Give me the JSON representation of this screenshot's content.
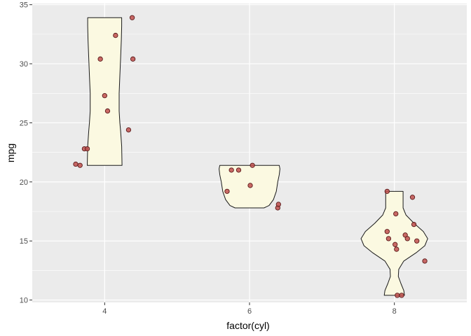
{
  "chart_data": {
    "type": "violin",
    "xlabel": "factor(cyl)",
    "ylabel": "mpg",
    "categories": [
      "4",
      "6",
      "8"
    ],
    "ylim": [
      9.8,
      35.1
    ],
    "yticks": [
      10,
      15,
      20,
      25,
      30,
      35
    ],
    "grid": true,
    "colors": {
      "panel": "#ebebeb",
      "grid": "#ffffff",
      "violin_fill": "#fbf9e1",
      "violin_outline": "#1a1a1a",
      "point_fill": "#c0504d",
      "point_outline": "#5a1a1a"
    },
    "violins": [
      {
        "category": "4",
        "profile": [
          {
            "y": 21.4,
            "w": 0.24
          },
          {
            "y": 23.0,
            "w": 0.235
          },
          {
            "y": 24.3,
            "w": 0.22
          },
          {
            "y": 25.0,
            "w": 0.21
          },
          {
            "y": 26.0,
            "w": 0.2
          },
          {
            "y": 27.5,
            "w": 0.2
          },
          {
            "y": 29.0,
            "w": 0.21
          },
          {
            "y": 30.5,
            "w": 0.22
          },
          {
            "y": 32.0,
            "w": 0.23
          },
          {
            "y": 33.2,
            "w": 0.235
          },
          {
            "y": 33.9,
            "w": 0.235
          }
        ],
        "points": [
          {
            "x": 3.6,
            "y": 21.5
          },
          {
            "x": 3.66,
            "y": 21.4
          },
          {
            "x": 3.72,
            "y": 22.8
          },
          {
            "x": 3.76,
            "y": 22.8
          },
          {
            "x": 3.94,
            "y": 30.4
          },
          {
            "x": 4.0,
            "y": 27.3
          },
          {
            "x": 4.04,
            "y": 26.0
          },
          {
            "x": 4.15,
            "y": 32.4
          },
          {
            "x": 4.33,
            "y": 24.4
          },
          {
            "x": 4.38,
            "y": 33.9
          },
          {
            "x": 4.39,
            "y": 30.4
          }
        ]
      },
      {
        "category": "6",
        "profile": [
          {
            "y": 17.8,
            "w": 0.2
          },
          {
            "y": 18.0,
            "w": 0.27
          },
          {
            "y": 18.5,
            "w": 0.33
          },
          {
            "y": 19.2,
            "w": 0.37
          },
          {
            "y": 20.0,
            "w": 0.39
          },
          {
            "y": 20.6,
            "w": 0.41
          },
          {
            "y": 21.1,
            "w": 0.42
          },
          {
            "y": 21.4,
            "w": 0.41
          }
        ],
        "points": [
          {
            "x": 5.69,
            "y": 19.2
          },
          {
            "x": 5.75,
            "y": 21.0
          },
          {
            "x": 5.85,
            "y": 21.0
          },
          {
            "x": 6.01,
            "y": 19.7
          },
          {
            "x": 6.04,
            "y": 21.4
          },
          {
            "x": 6.39,
            "y": 17.8
          },
          {
            "x": 6.4,
            "y": 18.1
          }
        ]
      },
      {
        "category": "8",
        "profile": [
          {
            "y": 10.4,
            "w": 0.14
          },
          {
            "y": 10.8,
            "w": 0.13
          },
          {
            "y": 11.4,
            "w": 0.09
          },
          {
            "y": 12.0,
            "w": 0.055
          },
          {
            "y": 12.6,
            "w": 0.06
          },
          {
            "y": 13.3,
            "w": 0.13
          },
          {
            "y": 14.0,
            "w": 0.3
          },
          {
            "y": 14.6,
            "w": 0.42
          },
          {
            "y": 15.2,
            "w": 0.46
          },
          {
            "y": 15.8,
            "w": 0.4
          },
          {
            "y": 16.5,
            "w": 0.27
          },
          {
            "y": 17.2,
            "w": 0.16
          },
          {
            "y": 17.8,
            "w": 0.12
          },
          {
            "y": 18.5,
            "w": 0.12
          },
          {
            "y": 19.2,
            "w": 0.12
          }
        ],
        "points": [
          {
            "x": 7.9,
            "y": 19.2
          },
          {
            "x": 7.9,
            "y": 15.8
          },
          {
            "x": 7.92,
            "y": 15.2
          },
          {
            "x": 8.01,
            "y": 14.7
          },
          {
            "x": 8.02,
            "y": 17.3
          },
          {
            "x": 8.03,
            "y": 14.3
          },
          {
            "x": 8.04,
            "y": 10.4
          },
          {
            "x": 8.1,
            "y": 10.4
          },
          {
            "x": 8.15,
            "y": 15.5
          },
          {
            "x": 8.18,
            "y": 15.2
          },
          {
            "x": 8.25,
            "y": 18.7
          },
          {
            "x": 8.27,
            "y": 16.4
          },
          {
            "x": 8.31,
            "y": 15.0
          },
          {
            "x": 8.42,
            "y": 13.3
          }
        ]
      }
    ]
  }
}
